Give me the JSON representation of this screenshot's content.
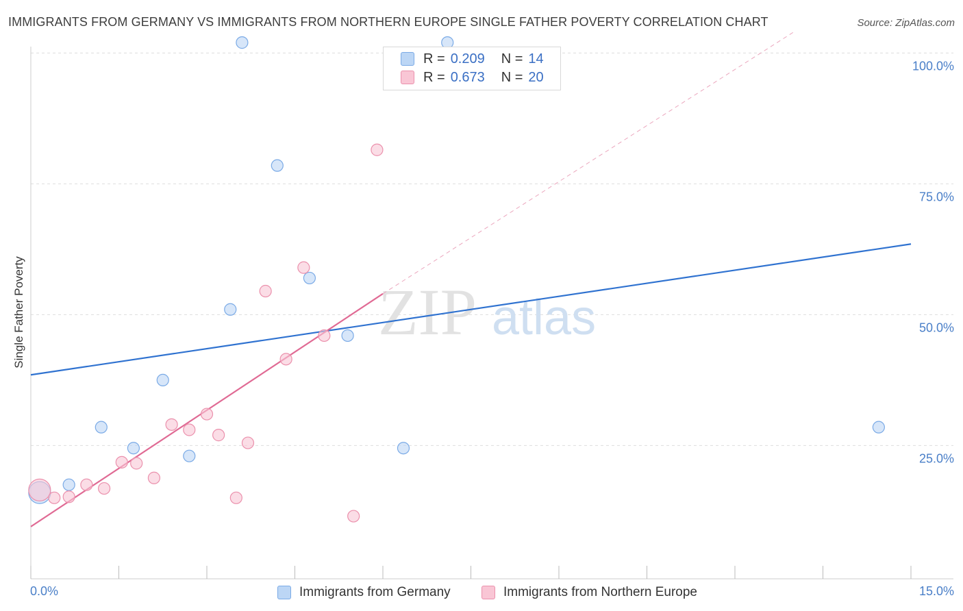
{
  "header": {
    "title": "IMMIGRANTS FROM GERMANY VS IMMIGRANTS FROM NORTHERN EUROPE SINGLE FATHER POVERTY CORRELATION CHART",
    "source": "Source: ZipAtlas.com"
  },
  "watermark": {
    "zip": "ZIP",
    "atlas": "atlas"
  },
  "legend": {
    "rows": [
      {
        "r_label": "R =",
        "r_value": "0.209",
        "n_label": "N =",
        "n_value": "14"
      },
      {
        "r_label": "R =",
        "r_value": "0.673",
        "n_label": "N =",
        "n_value": "20"
      }
    ]
  },
  "colors": {
    "germany_fill": "#bcd6f5",
    "germany_stroke": "#7aaae6",
    "germany_line": "#2f72d0",
    "northern_fill": "#f9c6d5",
    "northern_stroke": "#eb90ac",
    "northern_line": "#e06a94",
    "grid": "#dddddd",
    "axis_text": "#4a7fc8"
  },
  "chart_data": {
    "type": "scatter",
    "title": "IMMIGRANTS FROM GERMANY VS IMMIGRANTS FROM NORTHERN EUROPE SINGLE FATHER POVERTY CORRELATION CHART",
    "xlabel": "",
    "ylabel": "Single Father Poverty",
    "xlim": [
      0,
      15
    ],
    "ylim": [
      0,
      100
    ],
    "x_tick_labels": [
      {
        "value": 0,
        "label": "0.0%"
      },
      {
        "value": 15,
        "label": "15.0%"
      }
    ],
    "y_tick_labels": [
      {
        "value": 25,
        "label": "25.0%"
      },
      {
        "value": 50,
        "label": "50.0%"
      },
      {
        "value": 75,
        "label": "75.0%"
      },
      {
        "value": 100,
        "label": "100.0%"
      }
    ],
    "grid": true,
    "legend_position": "bottom",
    "series": [
      {
        "name": "Immigrants from Germany",
        "R": 0.209,
        "N": 14,
        "points": [
          {
            "x": 0.15,
            "y": 16,
            "big": true
          },
          {
            "x": 0.65,
            "y": 17.5
          },
          {
            "x": 1.2,
            "y": 28.5
          },
          {
            "x": 1.75,
            "y": 24.5
          },
          {
            "x": 2.25,
            "y": 37.5
          },
          {
            "x": 2.7,
            "y": 23
          },
          {
            "x": 3.4,
            "y": 51
          },
          {
            "x": 3.6,
            "y": 102
          },
          {
            "x": 4.2,
            "y": 78.5
          },
          {
            "x": 4.75,
            "y": 57
          },
          {
            "x": 5.4,
            "y": 46
          },
          {
            "x": 6.35,
            "y": 24.5
          },
          {
            "x": 7.1,
            "y": 102
          },
          {
            "x": 14.45,
            "y": 28.5
          }
        ],
        "trend": {
          "x": [
            0,
            15
          ],
          "y": [
            38.5,
            63.5
          ]
        }
      },
      {
        "name": "Immigrants from Northern Europe",
        "R": 0.673,
        "N": 20,
        "points": [
          {
            "x": 0.15,
            "y": 16.5,
            "big": true
          },
          {
            "x": 0.4,
            "y": 15
          },
          {
            "x": 0.65,
            "y": 15.2
          },
          {
            "x": 0.95,
            "y": 17.5
          },
          {
            "x": 1.25,
            "y": 16.8
          },
          {
            "x": 1.55,
            "y": 21.8
          },
          {
            "x": 1.8,
            "y": 21.6
          },
          {
            "x": 2.1,
            "y": 18.8
          },
          {
            "x": 2.4,
            "y": 29
          },
          {
            "x": 2.7,
            "y": 28
          },
          {
            "x": 3.0,
            "y": 31
          },
          {
            "x": 3.2,
            "y": 27
          },
          {
            "x": 3.5,
            "y": 15
          },
          {
            "x": 3.7,
            "y": 25.5
          },
          {
            "x": 4.0,
            "y": 54.5
          },
          {
            "x": 4.35,
            "y": 41.5
          },
          {
            "x": 4.65,
            "y": 59
          },
          {
            "x": 5.0,
            "y": 46
          },
          {
            "x": 5.5,
            "y": 11.5
          },
          {
            "x": 5.9,
            "y": 81.5
          }
        ],
        "trend": {
          "x": [
            0,
            6
          ],
          "y": [
            9.5,
            54
          ]
        },
        "trend_extension": {
          "x": [
            6,
            13
          ],
          "y": [
            54,
            104
          ]
        }
      }
    ]
  },
  "bottom_legend": {
    "items": [
      {
        "label": "Immigrants from Germany"
      },
      {
        "label": "Immigrants from Northern Europe"
      }
    ]
  }
}
